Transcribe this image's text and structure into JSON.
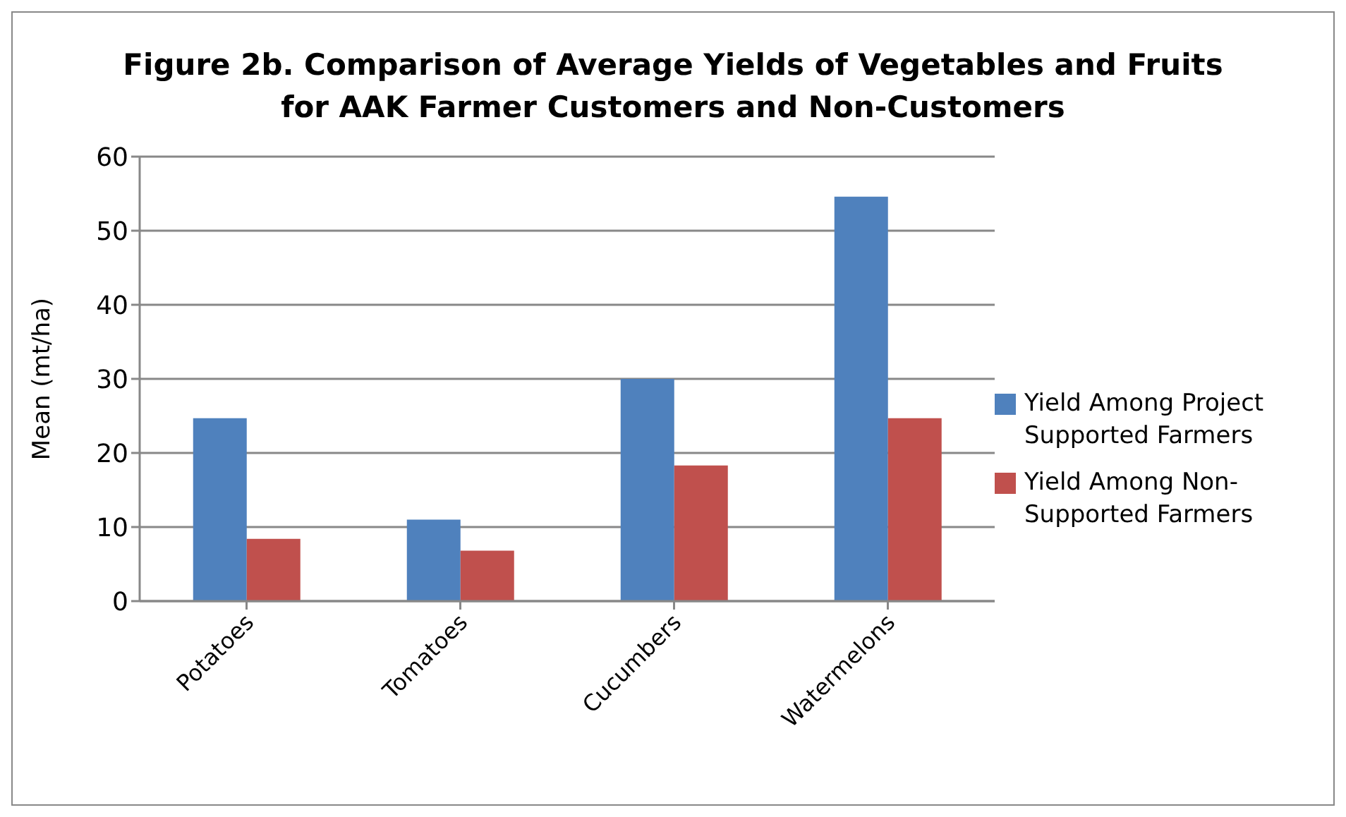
{
  "chart_data": {
    "type": "bar",
    "title": "Figure 2b.  Comparison of Average Yields of Vegetables and Fruits for AAK Farmer Customers and Non-Customers",
    "ylabel": "Mean (mt/ha)",
    "categories": [
      "Potatoes",
      "Tomatoes",
      "Cucumbers",
      "Watermelons"
    ],
    "series": [
      {
        "name": "Yield Among Project Supported Farmers",
        "color": "#4f81bd",
        "values": [
          24.7,
          11,
          30,
          54.6
        ]
      },
      {
        "name": "Yield Among Non-Supported Farmers",
        "color": "#c0504d",
        "values": [
          8.4,
          6.8,
          18.3,
          24.7
        ]
      }
    ],
    "ylim": [
      0,
      60
    ],
    "yticks": [
      0,
      10,
      20,
      30,
      40,
      50,
      60
    ],
    "grid": "y",
    "legend": "right"
  }
}
